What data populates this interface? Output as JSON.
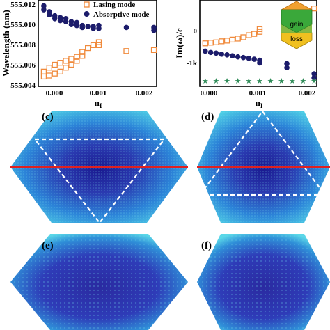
{
  "chart_data": [
    {
      "panel": "a",
      "type": "scatter",
      "xlabel": "n_I",
      "ylabel": "Wavelength (nm)",
      "xlim": [
        -0.0001,
        0.00205
      ],
      "ylim": [
        555.004,
        555.0128
      ],
      "xticks": [
        "0.000",
        "0.001",
        "0.002"
      ],
      "yticks": [
        "555.004",
        "555.006",
        "555.008",
        "555.010",
        "555.012"
      ],
      "legend": "top-right",
      "series": [
        {
          "name": "Lasing mode",
          "marker": "open-square",
          "color": "#f08a3c",
          "points": [
            [
              0.0,
              555.005
            ],
            [
              0.0,
              555.0055
            ],
            [
              0.0001,
              555.0051
            ],
            [
              0.0001,
              555.0059
            ],
            [
              0.0002,
              555.0053
            ],
            [
              0.0002,
              555.0062
            ],
            [
              0.0003,
              555.0055
            ],
            [
              0.0003,
              555.0064
            ],
            [
              0.0004,
              555.0059
            ],
            [
              0.0004,
              555.0066
            ],
            [
              0.0005,
              555.0062
            ],
            [
              0.0005,
              555.0068
            ],
            [
              0.0006,
              555.0066
            ],
            [
              0.0006,
              555.007
            ],
            [
              0.0007,
              555.0071
            ],
            [
              0.0007,
              555.0075
            ],
            [
              0.0008,
              555.0079
            ],
            [
              0.0009,
              555.0082
            ],
            [
              0.001,
              555.0082
            ],
            [
              0.001,
              555.0085
            ],
            [
              0.0015,
              555.0076
            ],
            [
              0.002,
              555.0077
            ]
          ]
        },
        {
          "name": "Absorptive mode",
          "marker": "filled-circle",
          "color": "#1c1c6b",
          "points": [
            [
              0.0,
              555.0122
            ],
            [
              0.0,
              555.0118
            ],
            [
              0.0001,
              555.0116
            ],
            [
              0.0001,
              555.0113
            ],
            [
              0.0002,
              555.0112
            ],
            [
              0.0002,
              555.0109
            ],
            [
              0.0003,
              555.011
            ],
            [
              0.0003,
              555.0107
            ],
            [
              0.0004,
              555.0109
            ],
            [
              0.0004,
              555.0106
            ],
            [
              0.0005,
              555.0106
            ],
            [
              0.0005,
              555.0103
            ],
            [
              0.0006,
              555.0105
            ],
            [
              0.0006,
              555.0102
            ],
            [
              0.0007,
              555.0102
            ],
            [
              0.0007,
              555.01
            ],
            [
              0.0008,
              555.0101
            ],
            [
              0.0009,
              555.0101
            ],
            [
              0.0009,
              555.0099
            ],
            [
              0.001,
              555.0102
            ],
            [
              0.001,
              555.0099
            ],
            [
              0.0015,
              555.01
            ],
            [
              0.002,
              555.01
            ],
            [
              0.002,
              555.0097
            ]
          ]
        }
      ]
    },
    {
      "panel": "b",
      "type": "scatter",
      "xlabel": "n_I",
      "ylabel": "Im(ω)/c",
      "xlim": [
        -0.0001,
        0.00205
      ],
      "ylim": [
        -1250,
        1300
      ],
      "xticks": [
        "0.000",
        "0.001",
        "0.002"
      ],
      "yticks": [
        "0",
        "-1k"
      ],
      "series": [
        {
          "marker": "open-square",
          "color": "#f08a3c",
          "points": [
            [
              0.0,
              20
            ],
            [
              0.0001,
              40
            ],
            [
              0.0002,
              50
            ],
            [
              0.0003,
              80
            ],
            [
              0.0004,
              100
            ],
            [
              0.0005,
              130
            ],
            [
              0.0006,
              160
            ],
            [
              0.0007,
              200
            ],
            [
              0.0008,
              260
            ],
            [
              0.0009,
              300
            ],
            [
              0.001,
              360
            ],
            [
              0.001,
              440
            ],
            [
              0.0015,
              770
            ],
            [
              0.002,
              1050
            ]
          ]
        },
        {
          "marker": "filled-circle",
          "color": "#1c1c6b",
          "points": [
            [
              0.0,
              -210
            ],
            [
              0.0001,
              -250
            ],
            [
              0.0002,
              -270
            ],
            [
              0.0003,
              -300
            ],
            [
              0.0004,
              -320
            ],
            [
              0.0005,
              -350
            ],
            [
              0.0006,
              -380
            ],
            [
              0.0007,
              -400
            ],
            [
              0.0008,
              -420
            ],
            [
              0.0009,
              -450
            ],
            [
              0.001,
              -480
            ],
            [
              0.001,
              -560
            ],
            [
              0.0015,
              -580
            ],
            [
              0.0015,
              -700
            ],
            [
              0.002,
              -880
            ],
            [
              0.002,
              -1000
            ]
          ]
        },
        {
          "marker": "star",
          "color": "#2e8b57",
          "points": [
            [
              0.0,
              -1300
            ],
            [
              0.0002,
              -1300
            ],
            [
              0.0004,
              -1300
            ],
            [
              0.0006,
              -1300
            ],
            [
              0.0008,
              -1300
            ],
            [
              0.001,
              -1300
            ],
            [
              0.0012,
              -1300
            ],
            [
              0.0014,
              -1300
            ],
            [
              0.0016,
              -1300
            ],
            [
              0.0018,
              -1300
            ],
            [
              0.002,
              -1300
            ]
          ]
        }
      ],
      "inset_labels": [
        "gain",
        "loss"
      ]
    }
  ],
  "legend": {
    "lasing": "Lasing mode",
    "absorptive": "Absorptive mode"
  },
  "axes_a": {
    "xlabel": "n",
    "xlabel_sub": "I",
    "ylabel": "Wavelength (nm)",
    "xticks": [
      "0.000",
      "0.001",
      "0.002"
    ],
    "yticks": [
      "555.012",
      "555.010",
      "555.008",
      "555.006",
      "555.004"
    ]
  },
  "axes_b": {
    "xlabel": "n",
    "xlabel_sub": "I",
    "ylabel": "Im(ω)/c",
    "xticks": [
      "0.000",
      "0.001",
      "0.002"
    ],
    "yticks": [
      "0",
      "-1k"
    ],
    "inset_gain": "gain",
    "inset_loss": "loss"
  },
  "panels": {
    "c": "(c)",
    "d": "(d)",
    "e": "(e)",
    "f": "(f)"
  },
  "colors": {
    "lasing": "#f08a3c",
    "absorptive": "#1c1c6b",
    "star": "#2e8b57",
    "field_dark": "#2222a0",
    "field_mid": "#1f78d1",
    "field_light": "#40c8e0",
    "red_line": "#e02020",
    "inset_gain": "#3aa83a",
    "inset_loss": "#f0c020",
    "inset_top": "#f0a030"
  }
}
